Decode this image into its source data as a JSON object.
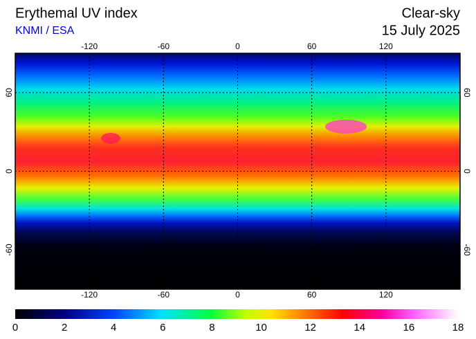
{
  "header": {
    "title": "Erythemal UV index",
    "source": "KNMI / ESA",
    "condition": "Clear-sky",
    "date": "15 July 2025"
  },
  "map": {
    "lonlim": [
      -180,
      180
    ],
    "latlim": [
      -90,
      90
    ],
    "lon_ticks": [
      -120,
      -60,
      0,
      60,
      120
    ],
    "lat_ticks": [
      60,
      0,
      -60
    ]
  },
  "colorbar": {
    "range": [
      0,
      18
    ],
    "ticks": [
      0,
      2,
      4,
      6,
      8,
      10,
      12,
      14,
      16,
      18
    ]
  }
}
